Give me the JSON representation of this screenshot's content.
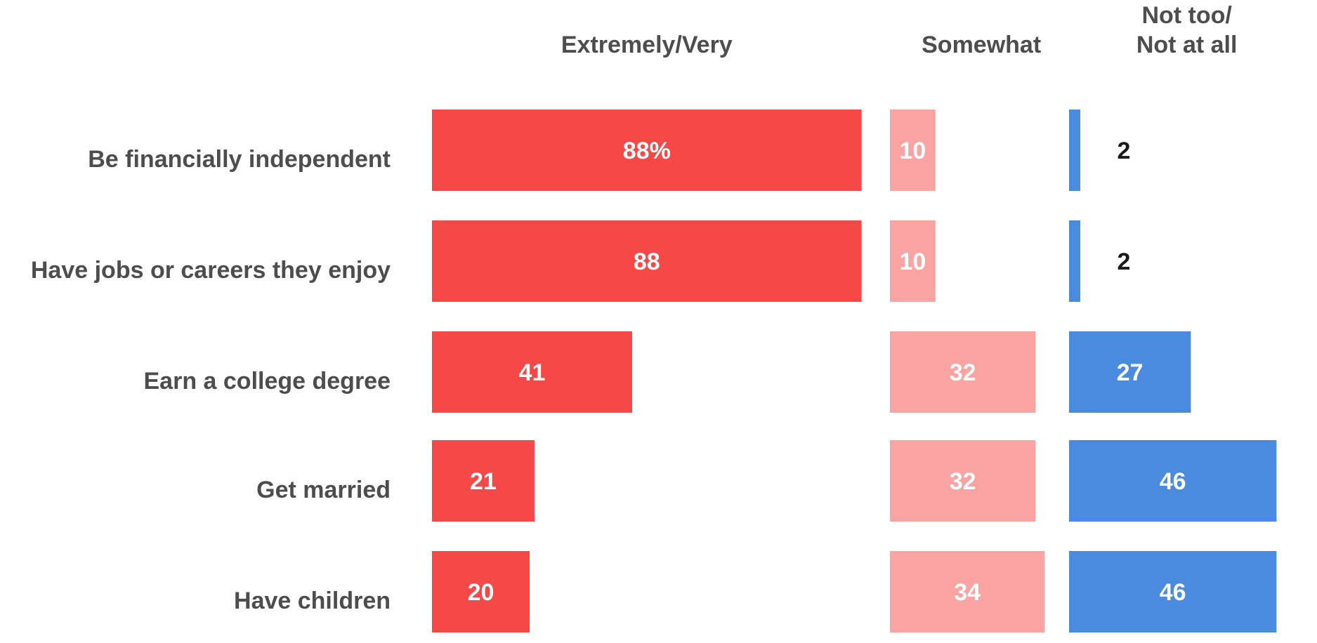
{
  "chart_data": {
    "type": "bar",
    "orientation": "horizontal",
    "layout": "three-panel diverging",
    "categories": [
      "Be financially independent",
      "Have jobs or careers they enjoy",
      "Earn a college degree",
      "Get married",
      "Have children"
    ],
    "series": [
      {
        "name": "Extremely/Very",
        "values": [
          88,
          88,
          41,
          21,
          20
        ],
        "labels": [
          "88%",
          "88",
          "41",
          "21",
          "20"
        ],
        "color": "#f74848"
      },
      {
        "name": "Somewhat",
        "values": [
          10,
          10,
          32,
          32,
          34
        ],
        "labels": [
          "10",
          "10",
          "32",
          "32",
          "34"
        ],
        "color": "#f9a3a3"
      },
      {
        "name": "Not too/\nNot at all",
        "values": [
          2,
          2,
          27,
          46,
          46
        ],
        "labels": [
          "2",
          "2",
          "27",
          "46",
          "46"
        ],
        "color": "#4a8be0"
      }
    ],
    "title": "",
    "xlabel": "",
    "ylabel": "",
    "xlim": [
      0,
      100
    ],
    "grid": false,
    "legend": "none (column headers above each panel)",
    "label_color_inside": "#ffffff",
    "label_color_outside": "#1a1a1a"
  }
}
